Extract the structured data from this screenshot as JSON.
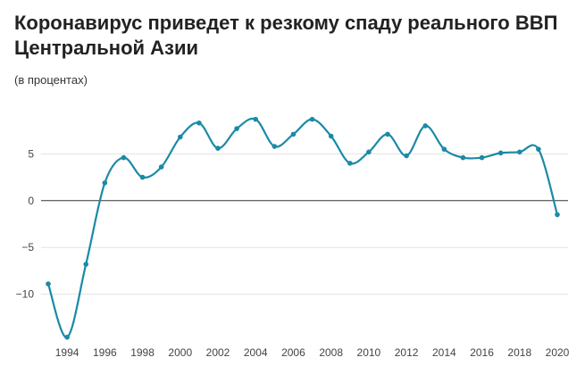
{
  "chart_data": {
    "type": "line",
    "title": "Коронавирус приведет к резкому спаду реального ВВП Центральной Азии",
    "subtitle": "(в процентах)",
    "xlabel": "",
    "ylabel": "",
    "x": [
      1993,
      1994,
      1995,
      1996,
      1997,
      1998,
      1999,
      2000,
      2001,
      2002,
      2003,
      2004,
      2005,
      2006,
      2007,
      2008,
      2009,
      2010,
      2011,
      2012,
      2013,
      2014,
      2015,
      2016,
      2017,
      2018,
      2019,
      2020
    ],
    "series": [
      {
        "values": [
          -8.9,
          -14.6,
          -6.8,
          1.9,
          4.6,
          2.5,
          3.6,
          6.8,
          8.3,
          5.6,
          7.7,
          8.7,
          5.8,
          7.1,
          8.7,
          6.9,
          4.0,
          5.2,
          7.1,
          4.8,
          8.0,
          5.5,
          4.6,
          4.6,
          5.1,
          5.2,
          5.5,
          -1.5
        ],
        "color": "#1a8aa6"
      }
    ],
    "ylim": [
      -15,
      10
    ],
    "yticks": [
      -10,
      -5,
      0,
      5
    ],
    "ytick_labels": [
      "−10",
      "−5",
      "0",
      "5"
    ],
    "xticks": [
      1994,
      1996,
      1998,
      2000,
      2002,
      2004,
      2006,
      2008,
      2010,
      2012,
      2014,
      2016,
      2018,
      2020
    ],
    "xtick_labels": [
      "1994",
      "1996",
      "1998",
      "2000",
      "2002",
      "2004",
      "2006",
      "2008",
      "2010",
      "2012",
      "2014",
      "2016",
      "2018",
      "2020"
    ],
    "grid": true,
    "legend": "none"
  }
}
